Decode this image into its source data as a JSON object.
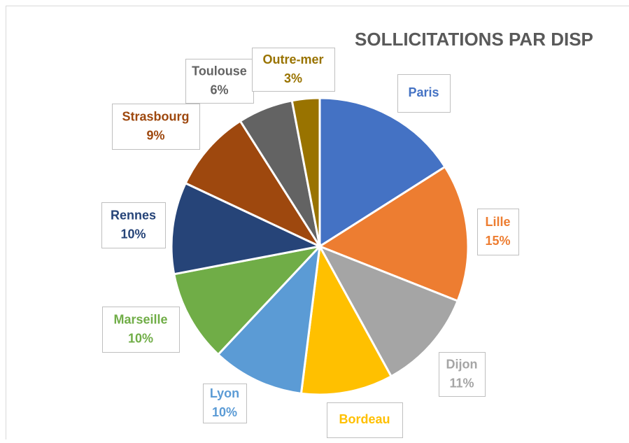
{
  "chart_data": {
    "type": "pie",
    "title": "SOLLICITATIONS PAR DISP",
    "categories": [
      "Paris",
      "Lille",
      "Dijon",
      "Bordeau",
      "Lyon",
      "Marseille",
      "Rennes",
      "Strasbourg",
      "Toulouse",
      "Outre-mer"
    ],
    "values": [
      16,
      15,
      11,
      10,
      10,
      10,
      10,
      9,
      6,
      3
    ],
    "value_labels": [
      null,
      "15%",
      "11%",
      null,
      "10%",
      "10%",
      "10%",
      "9%",
      "6%",
      "3%"
    ],
    "colors": [
      "#4472c4",
      "#ed7d31",
      "#a5a5a5",
      "#ffc000",
      "#5b9bd5",
      "#70ad47",
      "#264478",
      "#9e480e",
      "#636363",
      "#997300"
    ]
  }
}
